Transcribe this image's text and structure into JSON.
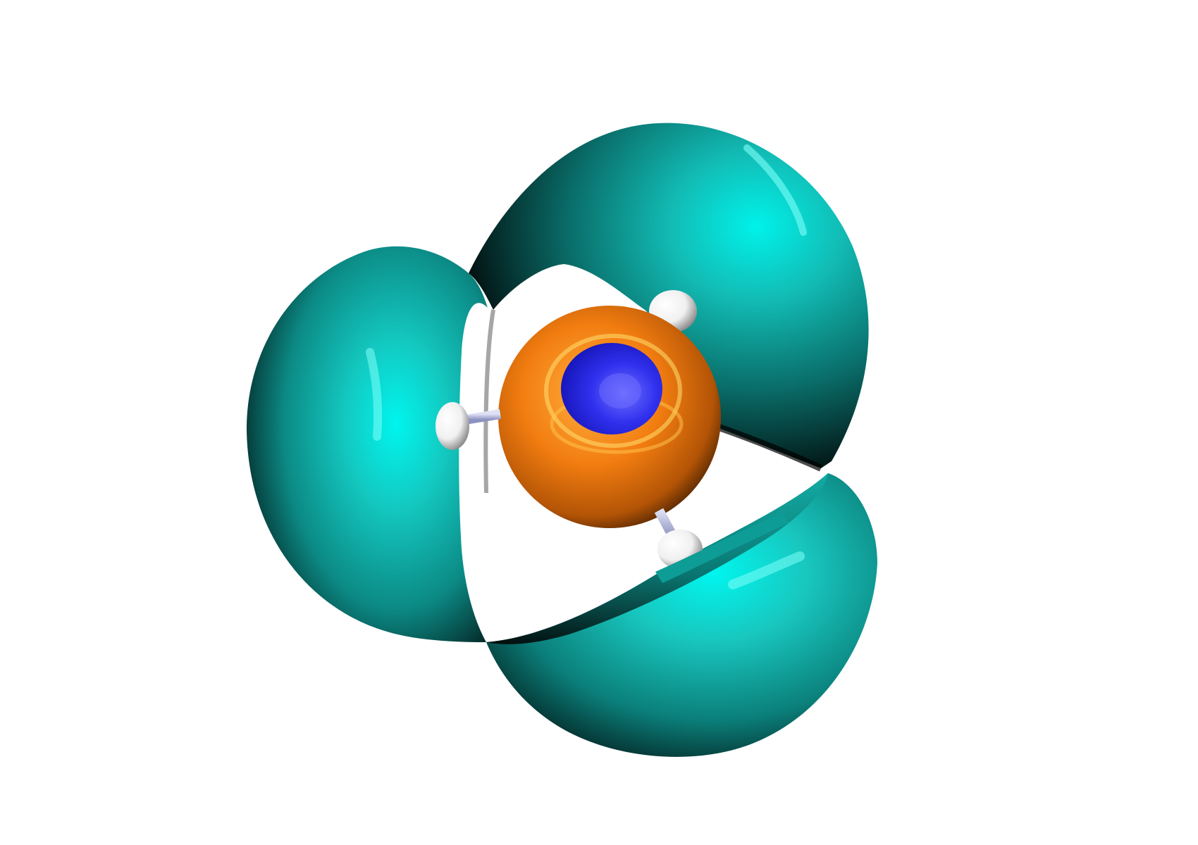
{
  "scene": {
    "subject": "molecular-orbital-isosurface",
    "background_color": "#ffffff",
    "colors": {
      "outer_lobe_positive": "#00e8e0",
      "outer_lobe_mid": "#12a8a2",
      "outer_lobe_shadow": "#000000",
      "inner_shell": "#f27d10",
      "inner_shell_highlight": "#ffe070",
      "core_atom": "#2424ee",
      "core_atom_highlight": "#6666ff",
      "hydrogen_atom": "#ffffff",
      "bond": "#b8bedf"
    },
    "atoms": [
      {
        "element": "N",
        "role": "central-atom"
      },
      {
        "element": "H",
        "role": "upper-right-hydrogen"
      },
      {
        "element": "H",
        "role": "left-hydrogen"
      },
      {
        "element": "H",
        "role": "lower-right-hydrogen"
      }
    ],
    "lobes": [
      "left-lobe",
      "top-lobe",
      "bottom-right-lobe"
    ]
  }
}
